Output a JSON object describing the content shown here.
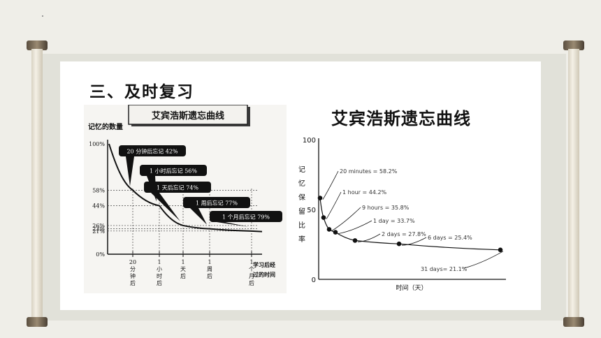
{
  "heading": "三、及时复习",
  "left_chart": {
    "title": "艾宾浩斯遗忘曲线",
    "ylabel": "记忆的数量",
    "xlabel_lines": [
      "学习后经",
      "过的时间"
    ],
    "y_ticks": [
      "100%",
      "58%",
      "44%",
      "26%",
      "23%",
      "21%",
      "0%"
    ],
    "x_ticks": [
      [
        "20",
        "分",
        "钟",
        "后"
      ],
      [
        "1",
        "小",
        "时",
        "后"
      ],
      [
        "1",
        "天",
        "后"
      ],
      [
        "1",
        "周",
        "后"
      ],
      [
        "1",
        "个",
        "月",
        "后"
      ]
    ],
    "callouts": [
      "20 分钟后忘记 42%",
      "1 小时后忘记 56%",
      "1 天后忘记 74%",
      "1 周后忘记 77%",
      "1 个月后忘记 79%"
    ]
  },
  "right_chart": {
    "title": "艾宾浩斯遗忘曲线",
    "ylabel_chars": [
      "记",
      "忆",
      "保",
      "留",
      "比",
      "率"
    ],
    "xlabel": "时间（天）",
    "y_ticks": [
      "100",
      "50",
      "0"
    ],
    "annotations": [
      "20 minutes = 58.2%",
      "1 hour = 44.2%",
      "9 hours = 35.8%",
      "1 day = 33.7%",
      "2 days = 27.8%",
      "6 days = 25.4%",
      "31 days= 21.1%"
    ]
  },
  "chart_data": [
    {
      "type": "line",
      "title": "艾宾浩斯遗忘曲线",
      "ylabel": "记忆的数量",
      "xlabel": "学习后经过的时间",
      "categories": [
        "20分钟后",
        "1小时后",
        "1天后",
        "1周后",
        "1个月后"
      ],
      "values": [
        58,
        44,
        26,
        23,
        21
      ]
    },
    {
      "type": "scatter",
      "title": "艾宾浩斯遗忘曲线",
      "xlabel": "时间（天）",
      "ylabel": "记忆保留比率",
      "ylim": [
        0,
        100
      ],
      "x": [
        "20 minutes",
        "1 hour",
        "9 hours",
        "1 day",
        "2 days",
        "6 days",
        "31 days"
      ],
      "values": [
        58.2,
        44.2,
        35.8,
        33.7,
        27.8,
        25.4,
        21.1
      ]
    }
  ]
}
